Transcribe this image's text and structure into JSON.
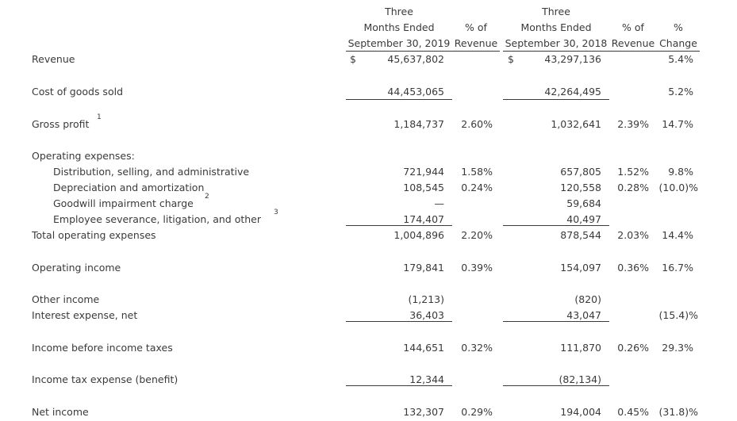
{
  "header": {
    "col1": [
      "Three",
      "Months Ended",
      "September 30, 2019"
    ],
    "pct1": [
      "% of",
      "Revenue"
    ],
    "col2": [
      "Three",
      "Months Ended",
      "September 30, 2018"
    ],
    "pct2": [
      "% of",
      "Revenue"
    ],
    "chg": [
      "%",
      "Change"
    ]
  },
  "rows": {
    "revenue": {
      "label": "Revenue",
      "cur1": "$",
      "v1": "45,637,802",
      "cur2": "$",
      "v2": "43,297,136",
      "chg": "5.4%"
    },
    "cogs": {
      "label": "Cost of goods sold",
      "v1": "44,453,065",
      "v2": "42,264,495",
      "chg": "5.2%"
    },
    "gross": {
      "label": "Gross profit",
      "sup": "1",
      "v1": "1,184,737",
      "p1": "2.60%",
      "v2": "1,032,641",
      "p2": "2.39%",
      "chg": "14.7%"
    },
    "opex_header": {
      "label": "Operating expenses:"
    },
    "dist": {
      "label": "Distribution, selling, and administrative",
      "v1": "721,944",
      "p1": "1.58%",
      "v2": "657,805",
      "p2": "1.52%",
      "chg": "9.8%"
    },
    "dep": {
      "label": "Depreciation and amortization",
      "v1": "108,545",
      "p1": "0.24%",
      "v2": "120,558",
      "p2": "0.28%",
      "chg": "(10.0)%"
    },
    "goodwill": {
      "label": "Goodwill impairment charge",
      "sup": "2",
      "v1": "—",
      "v2": "59,684"
    },
    "severance": {
      "label": "Employee severance, litigation, and other",
      "sup": "3",
      "v1": "174,407",
      "v2": "40,497"
    },
    "total_opex": {
      "label": "Total operating expenses",
      "v1": "1,004,896",
      "p1": "2.20%",
      "v2": "878,544",
      "p2": "2.03%",
      "chg": "14.4%"
    },
    "opinc": {
      "label": "Operating income",
      "v1": "179,841",
      "p1": "0.39%",
      "v2": "154,097",
      "p2": "0.36%",
      "chg": "16.7%"
    },
    "other": {
      "label": "Other income",
      "v1": "(1,213)",
      "v2": "(820)"
    },
    "interest": {
      "label": "Interest expense, net",
      "v1": "36,403",
      "v2": "43,047",
      "chg": "(15.4)%"
    },
    "pretax": {
      "label": "Income before income taxes",
      "v1": "144,651",
      "p1": "0.32%",
      "v2": "111,870",
      "p2": "0.26%",
      "chg": "29.3%"
    },
    "tax": {
      "label": "Income tax expense (benefit)",
      "v1": "12,344",
      "v2": "(82,134)"
    },
    "net": {
      "label": "Net income",
      "v1": "132,307",
      "p1": "0.29%",
      "v2": "194,004",
      "p2": "0.45%",
      "chg": "(31.8)%"
    }
  }
}
